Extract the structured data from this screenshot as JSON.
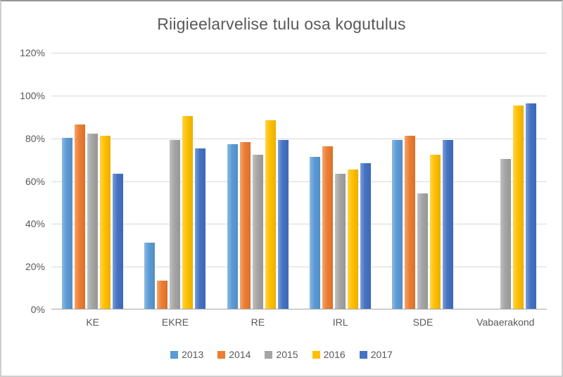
{
  "chart_data": {
    "type": "bar",
    "title": "Riigieelarvelise tulu osa kogutulus",
    "xlabel": "",
    "ylabel": "",
    "categories": [
      "KE",
      "EKRE",
      "RE",
      "IRL",
      "SDE",
      "Vabaerakond"
    ],
    "series": [
      {
        "name": "2013",
        "color": "#5B9BD5",
        "values": [
          80,
          31,
          77,
          71,
          79,
          null
        ]
      },
      {
        "name": "2014",
        "color": "#ED7D31",
        "values": [
          86,
          13,
          78,
          76,
          81,
          null
        ]
      },
      {
        "name": "2015",
        "color": "#A5A5A5",
        "values": [
          82,
          79,
          72,
          63,
          54,
          70
        ]
      },
      {
        "name": "2016",
        "color": "#FFC000",
        "values": [
          81,
          90,
          88,
          65,
          72,
          95
        ]
      },
      {
        "name": "2017",
        "color": "#4472C4",
        "values": [
          63,
          75,
          79,
          68,
          79,
          96
        ]
      }
    ],
    "ylim": [
      0,
      120
    ],
    "y_tick_values": [
      120,
      100,
      80,
      60,
      40,
      20,
      0
    ],
    "y_tick_suffix": "%",
    "grid": true,
    "legend_position": "bottom"
  },
  "style": {
    "text_color": "#595959",
    "gridline_color": "#d9d9d9",
    "axis_line_color": "#a6a6a6",
    "background": "#ffffff"
  }
}
